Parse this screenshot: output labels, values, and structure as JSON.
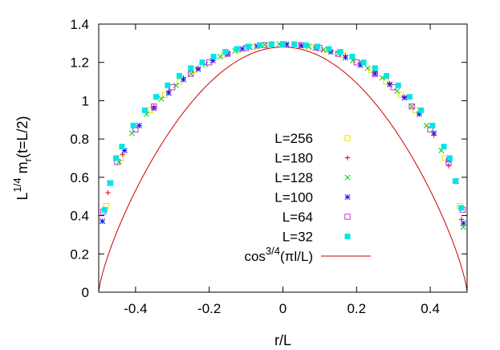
{
  "chart_data": {
    "type": "scatter",
    "xlabel": {
      "base": "r/L"
    },
    "ylabel": {
      "prefix": "L",
      "prefix_sup": "1/4",
      "main": " m",
      "main_sub": "r",
      "suffix": "(t=L/2)"
    },
    "xlim": [
      -0.5,
      0.5
    ],
    "ylim": [
      0,
      1.4
    ],
    "x_ticks": [
      -0.4,
      -0.2,
      0,
      0.2,
      0.4
    ],
    "x_tick_labels": [
      "-0.4",
      "-0.2",
      "0",
      "0.2",
      "0.4"
    ],
    "y_ticks": [
      0,
      0.2,
      0.4,
      0.6,
      0.8,
      1,
      1.2,
      1.4
    ],
    "y_tick_labels": [
      "0",
      "0.2",
      "0.4",
      "0.6",
      "0.8",
      "1",
      "1.2",
      "1.4"
    ],
    "grid": false,
    "legend_position": "center",
    "series": [
      {
        "name": "L=256",
        "marker": "square-open",
        "color": "#e6e600",
        "x": [
          -0.48,
          -0.44,
          -0.4,
          -0.36,
          -0.32,
          -0.28,
          -0.24,
          -0.2,
          -0.16,
          -0.12,
          -0.08,
          -0.04,
          0,
          0.04,
          0.08,
          0.12,
          0.16,
          0.2,
          0.24,
          0.28,
          0.32,
          0.36,
          0.4,
          0.44,
          0.48
        ],
        "y": [
          0.45,
          0.7,
          0.85,
          0.95,
          1.03,
          1.1,
          1.16,
          1.2,
          1.24,
          1.265,
          1.28,
          1.29,
          1.295,
          1.29,
          1.28,
          1.265,
          1.24,
          1.2,
          1.16,
          1.1,
          1.03,
          0.95,
          0.85,
          0.7,
          0.45
        ]
      },
      {
        "name": "L=180",
        "marker": "plus",
        "color": "#e60000",
        "x": [
          -0.475,
          -0.435,
          -0.39,
          -0.35,
          -0.31,
          -0.27,
          -0.23,
          -0.19,
          -0.15,
          -0.11,
          -0.07,
          -0.03,
          0.01,
          0.05,
          0.09,
          0.13,
          0.17,
          0.21,
          0.25,
          0.29,
          0.33,
          0.37,
          0.41,
          0.45,
          0.485
        ],
        "y": [
          0.52,
          0.72,
          0.87,
          0.97,
          1.05,
          1.12,
          1.17,
          1.21,
          1.245,
          1.27,
          1.285,
          1.293,
          1.295,
          1.288,
          1.277,
          1.26,
          1.235,
          1.195,
          1.15,
          1.09,
          1.02,
          0.93,
          0.82,
          0.66,
          0.38
        ]
      },
      {
        "name": "L=128",
        "marker": "x",
        "color": "#00cc00",
        "x": [
          -0.484,
          -0.445,
          -0.41,
          -0.37,
          -0.33,
          -0.29,
          -0.25,
          -0.21,
          -0.17,
          -0.13,
          -0.09,
          -0.05,
          -0.01,
          0.03,
          0.07,
          0.11,
          0.15,
          0.19,
          0.23,
          0.27,
          0.31,
          0.35,
          0.39,
          0.43,
          0.47,
          0.49
        ],
        "y": [
          0.43,
          0.68,
          0.83,
          0.93,
          1.01,
          1.08,
          1.14,
          1.19,
          1.23,
          1.26,
          1.28,
          1.292,
          1.296,
          1.293,
          1.283,
          1.265,
          1.245,
          1.21,
          1.17,
          1.12,
          1.05,
          0.97,
          0.87,
          0.74,
          0.58,
          0.34
        ]
      },
      {
        "name": "L=100",
        "marker": "asterisk",
        "color": "#1a1aff",
        "x": [
          -0.49,
          -0.47,
          -0.43,
          -0.39,
          -0.35,
          -0.31,
          -0.27,
          -0.23,
          -0.19,
          -0.15,
          -0.11,
          -0.07,
          -0.03,
          0.01,
          0.05,
          0.09,
          0.13,
          0.17,
          0.21,
          0.25,
          0.29,
          0.33,
          0.37,
          0.41,
          0.45,
          0.47,
          0.49
        ],
        "y": [
          0.37,
          0.57,
          0.74,
          0.87,
          0.96,
          1.04,
          1.11,
          1.165,
          1.21,
          1.245,
          1.27,
          1.285,
          1.293,
          1.294,
          1.287,
          1.275,
          1.255,
          1.225,
          1.185,
          1.14,
          1.085,
          1.015,
          0.93,
          0.83,
          0.69,
          0.58,
          0.36
        ]
      },
      {
        "name": "L=64",
        "marker": "square-open",
        "color": "#cc33cc",
        "x": [
          -0.488,
          -0.45,
          -0.4,
          -0.35,
          -0.3,
          -0.25,
          -0.2,
          -0.15,
          -0.1,
          -0.05,
          0,
          0.05,
          0.1,
          0.15,
          0.2,
          0.25,
          0.3,
          0.35,
          0.4,
          0.45,
          0.488
        ],
        "y": [
          0.42,
          0.68,
          0.85,
          0.97,
          1.07,
          1.14,
          1.2,
          1.245,
          1.275,
          1.29,
          1.295,
          1.29,
          1.275,
          1.245,
          1.2,
          1.14,
          1.07,
          0.97,
          0.85,
          0.68,
          0.43
        ]
      },
      {
        "name": "L=32",
        "marker": "square-filled",
        "color": "#00e6e6",
        "x": [
          -0.484,
          -0.468,
          -0.453,
          -0.437,
          -0.406,
          -0.375,
          -0.344,
          -0.313,
          -0.281,
          -0.25,
          -0.219,
          -0.188,
          -0.156,
          -0.125,
          -0.094,
          -0.063,
          -0.031,
          0,
          0.031,
          0.063,
          0.094,
          0.125,
          0.156,
          0.188,
          0.219,
          0.25,
          0.281,
          0.313,
          0.344,
          0.375,
          0.406,
          0.437,
          0.453,
          0.468,
          0.484
        ],
        "y": [
          0.43,
          0.57,
          0.7,
          0.76,
          0.87,
          0.95,
          1.02,
          1.08,
          1.13,
          1.17,
          1.2,
          1.23,
          1.255,
          1.27,
          1.283,
          1.29,
          1.295,
          1.295,
          1.295,
          1.29,
          1.283,
          1.27,
          1.255,
          1.23,
          1.2,
          1.17,
          1.13,
          1.08,
          1.02,
          0.95,
          0.87,
          0.76,
          0.7,
          0.58,
          0.44
        ]
      },
      {
        "name": "cos3/4(πl/L)",
        "name_base": "cos",
        "name_sup": "3/4",
        "name_rest": "(πl/L)",
        "marker": "line",
        "color": "#cc0000",
        "formula": "1.28*cos(pi*x)^0.75"
      }
    ]
  }
}
